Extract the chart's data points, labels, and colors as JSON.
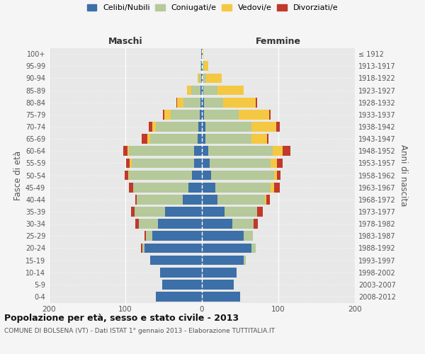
{
  "age_groups": [
    "0-4",
    "5-9",
    "10-14",
    "15-19",
    "20-24",
    "25-29",
    "30-34",
    "35-39",
    "40-44",
    "45-49",
    "50-54",
    "55-59",
    "60-64",
    "65-69",
    "70-74",
    "75-79",
    "80-84",
    "85-89",
    "90-94",
    "95-99",
    "100+"
  ],
  "birth_years": [
    "2008-2012",
    "2003-2007",
    "1998-2002",
    "1993-1997",
    "1988-1992",
    "1983-1987",
    "1978-1982",
    "1973-1977",
    "1968-1972",
    "1963-1967",
    "1958-1962",
    "1953-1957",
    "1948-1952",
    "1943-1947",
    "1938-1942",
    "1933-1937",
    "1928-1932",
    "1923-1927",
    "1918-1922",
    "1913-1917",
    "≤ 1912"
  ],
  "male_celibi": [
    60,
    52,
    55,
    68,
    75,
    65,
    57,
    48,
    25,
    18,
    13,
    10,
    10,
    6,
    5,
    3,
    2,
    2,
    1,
    1,
    1
  ],
  "male_coniugati": [
    0,
    0,
    0,
    0,
    3,
    8,
    25,
    40,
    60,
    72,
    82,
    82,
    85,
    62,
    55,
    38,
    22,
    12,
    3,
    1,
    0
  ],
  "male_vedovi": [
    0,
    0,
    0,
    0,
    0,
    0,
    0,
    0,
    0,
    0,
    1,
    2,
    2,
    3,
    5,
    8,
    8,
    5,
    2,
    0,
    0
  ],
  "male_divorziati": [
    0,
    0,
    0,
    0,
    2,
    2,
    5,
    5,
    2,
    5,
    5,
    5,
    6,
    8,
    4,
    2,
    1,
    0,
    0,
    0,
    0
  ],
  "female_nubili": [
    50,
    42,
    45,
    55,
    65,
    55,
    40,
    30,
    20,
    18,
    12,
    10,
    8,
    5,
    5,
    3,
    3,
    2,
    1,
    1,
    1
  ],
  "female_coniugate": [
    0,
    0,
    0,
    2,
    5,
    12,
    28,
    42,
    62,
    72,
    82,
    80,
    85,
    60,
    60,
    45,
    25,
    18,
    5,
    2,
    0
  ],
  "female_vedove": [
    0,
    0,
    0,
    0,
    0,
    0,
    0,
    0,
    2,
    4,
    4,
    8,
    13,
    20,
    32,
    40,
    42,
    35,
    20,
    5,
    1
  ],
  "female_divorziate": [
    0,
    0,
    0,
    0,
    0,
    0,
    5,
    8,
    5,
    8,
    5,
    8,
    10,
    2,
    5,
    2,
    2,
    0,
    0,
    0,
    0
  ],
  "colors": {
    "celibi": "#3d6fa8",
    "coniugati": "#b5c99a",
    "vedovi": "#f5c842",
    "divorziati": "#c0392b"
  },
  "title": "Popolazione per età, sesso e stato civile - 2013",
  "subtitle": "COMUNE DI BOLSENA (VT) - Dati ISTAT 1° gennaio 2013 - Elaborazione TUTTITALIA.IT",
  "label_maschi": "Maschi",
  "label_femmine": "Femmine",
  "ylabel_left": "Fasce di età",
  "ylabel_right": "Anni di nascita",
  "legend_labels": [
    "Celibi/Nubili",
    "Coniugati/e",
    "Vedovi/e",
    "Divorziati/e"
  ],
  "xlim": 200,
  "bg_color": "#f5f5f5",
  "plot_bg": "#e8e8e8",
  "bar_height": 0.8
}
